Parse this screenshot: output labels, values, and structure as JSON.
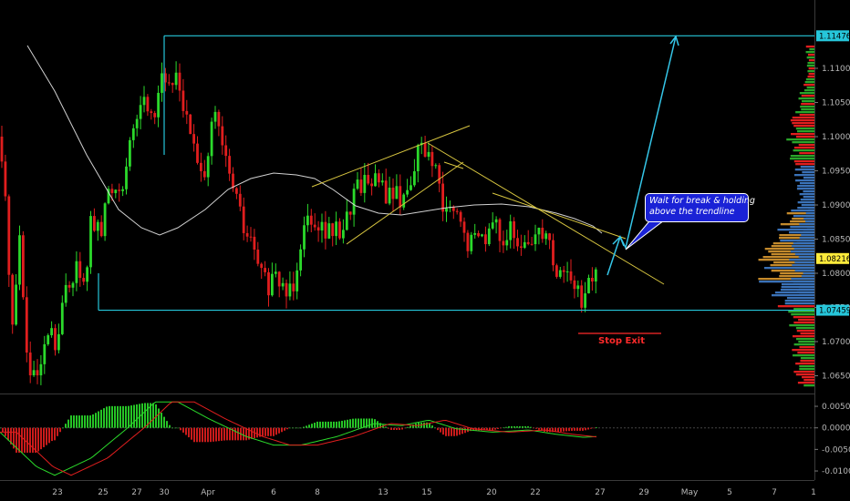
{
  "chart_data": [
    {
      "type": "candlestick",
      "title": "",
      "ylim": [
        1.062,
        1.118
      ],
      "y_ticks": [
        "1.11000",
        "1.10500",
        "1.10000",
        "1.09500",
        "1.09000",
        "1.08500",
        "1.08000",
        "1.07500",
        "1.07000",
        "1.06500"
      ],
      "y_tick_values": [
        1.11,
        1.105,
        1.1,
        1.095,
        1.09,
        1.085,
        1.08,
        1.075,
        1.07,
        1.065
      ],
      "x_ticks": [
        "23",
        "25",
        "27",
        "30",
        "Apr",
        "6",
        "8",
        "13",
        "15",
        "20",
        "22",
        "27",
        "29",
        "May",
        "5",
        "7",
        "1"
      ],
      "price_tags": [
        {
          "value": 1.11476,
          "label": "1.11476",
          "color": "#26c6da"
        },
        {
          "value": 1.08216,
          "label": "1.08216",
          "color": "#ffeb3b"
        },
        {
          "value": 1.07459,
          "label": "1.07459",
          "color": "#26c6da"
        }
      ],
      "levels": {
        "resistance": 1.11476,
        "support": 1.07459,
        "stop_exit": 1.0712
      },
      "annotations": {
        "note_line1": "Wait for break & holding",
        "note_line2": "above the trendline",
        "stop_label": "Stop Exit"
      },
      "colors": {
        "bull": "#2bd92b",
        "bear": "#e01e1e",
        "box": "#26c6da",
        "trendline": "#d8c640",
        "moving_average": "#e8e8e8",
        "arrow": "#35c6e8",
        "volume_buy": "#2aa52a",
        "volume_sell": "#e01e1e",
        "volume_neutral": "#3a72b8",
        "volume_value_area": "#c48a2c"
      }
    },
    {
      "type": "macd",
      "ylim": [
        -0.012,
        0.006
      ],
      "y_ticks": [
        "0.00500",
        "0.00000",
        "-0.00500",
        "-0.01000"
      ],
      "y_tick_values": [
        0.005,
        0.0,
        -0.005,
        -0.01
      ],
      "colors": {
        "macd": "#2bd92b",
        "signal": "#e01e1e",
        "hist_pos": "#2bd92b",
        "hist_neg": "#e01e1e"
      }
    }
  ]
}
